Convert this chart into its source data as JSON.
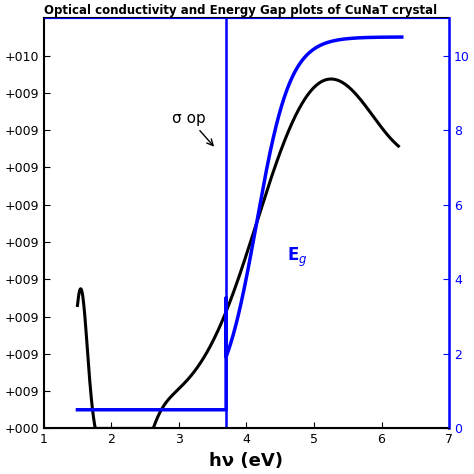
{
  "title": "Optical conductivity and Energy Gap plots of CuNaT crystal",
  "xlabel": "hν (eV)",
  "xmin": 1,
  "xmax": 7,
  "vline_x": 3.7,
  "sigma_color": "black",
  "eg_color": "blue",
  "vline_color": "blue",
  "sigma_label": "σ op",
  "eg_label": "Eg",
  "background_color": "white",
  "linewidth_sigma": 2.2,
  "linewidth_eg": 2.5,
  "left_yticks": [
    0,
    1000000000.0,
    2000000000.0,
    3000000000.0,
    4000000000.0,
    5000000000.0,
    6000000000.0,
    7000000000.0,
    8000000000.0,
    9000000000.0,
    10000000000.0
  ],
  "right_yticks": [
    0,
    2000000000.0,
    4000000000.0,
    6000000000.0,
    8000000000.0,
    10000000000.0
  ],
  "right_ylabels": [
    "0",
    "2",
    "4",
    "6",
    "8",
    "10"
  ],
  "ylim": [
    0,
    11000000000.0
  ]
}
